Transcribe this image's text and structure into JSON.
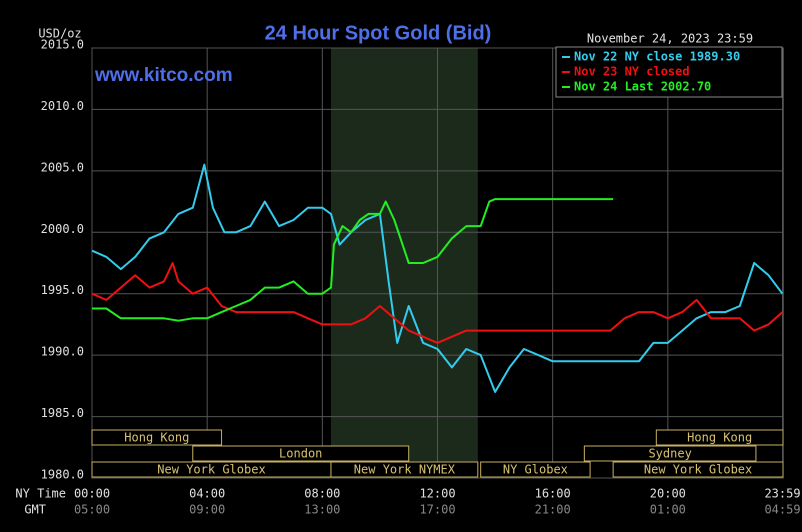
{
  "chart_data": {
    "type": "line",
    "title": "24 Hour Spot Gold (Bid)",
    "date_label": "November 24, 2023 23:59",
    "watermark": "www.kitco.com",
    "y_unit": "USD/oz",
    "x_row_label": "NY Time",
    "x_row2_label": "GMT",
    "xlim": [
      0,
      24
    ],
    "ylim": [
      1980,
      2015
    ],
    "yticks": [
      {
        "value": 1980,
        "label": "1980.0"
      },
      {
        "value": 1985,
        "label": "1985.0"
      },
      {
        "value": 1990,
        "label": "1990.0"
      },
      {
        "value": 1995,
        "label": "1995.0"
      },
      {
        "value": 2000,
        "label": "2000.0"
      },
      {
        "value": 2005,
        "label": "2005.0"
      },
      {
        "value": 2010,
        "label": "2010.0"
      },
      {
        "value": 2015,
        "label": "2015.0"
      }
    ],
    "xticks": [
      {
        "value": 0,
        "label": "00:00",
        "gmt": "05:00"
      },
      {
        "value": 4,
        "label": "04:00",
        "gmt": "09:00"
      },
      {
        "value": 8,
        "label": "08:00",
        "gmt": "13:00"
      },
      {
        "value": 12,
        "label": "12:00",
        "gmt": "17:00"
      },
      {
        "value": 16,
        "label": "16:00",
        "gmt": "21:00"
      },
      {
        "value": 20,
        "label": "20:00",
        "gmt": "01:00"
      },
      {
        "value": 23.983,
        "label": "23:59",
        "gmt": "04:59"
      }
    ],
    "grid": true,
    "sessions": [
      {
        "label": "Hong Kong",
        "start": 0,
        "end": 4.5
      },
      {
        "label": "Hong Kong",
        "start": 19.6,
        "end": 24
      },
      {
        "label": "London",
        "start": 3.5,
        "end": 11
      },
      {
        "label": "Sydney",
        "start": 17.1,
        "end": 23.06
      },
      {
        "label": "New York Globex",
        "start": 0,
        "end": 8.3
      },
      {
        "label": "New York NYMEX",
        "start": 8.3,
        "end": 13.4
      },
      {
        "label": "NY Globex",
        "start": 13.5,
        "end": 17.3
      },
      {
        "label": "New York Globex",
        "start": 18.1,
        "end": 24
      }
    ],
    "series": [
      {
        "name": "Nov 22 NY close 1989.30",
        "color": "#33ccee",
        "x": [
          0,
          0.5,
          1,
          1.5,
          2,
          2.5,
          3,
          3.5,
          3.9,
          4.2,
          4.6,
          5,
          5.5,
          6,
          6.5,
          7,
          7.5,
          8,
          8.3,
          8.6,
          9,
          9.5,
          10,
          10.3,
          10.6,
          11,
          11.5,
          12,
          12.5,
          13,
          13.5,
          14,
          14.5,
          15,
          15.5,
          16,
          17,
          18,
          19,
          19.5,
          20,
          20.5,
          21,
          21.5,
          22,
          22.5,
          23,
          23.5,
          23.98
        ],
        "values": [
          1998.5,
          1998,
          1997,
          1998,
          1999.5,
          2000,
          2001.5,
          2002,
          2005.5,
          2002,
          2000,
          2000,
          2000.5,
          2002.5,
          2000.5,
          2001,
          2002,
          2002,
          2001.5,
          1999,
          2000,
          2001,
          2001.5,
          1996,
          1991,
          1994,
          1991,
          1990.5,
          1989,
          1990.5,
          1990,
          1987,
          1989,
          1990.5,
          1990,
          1989.5,
          1989.5,
          1989.5,
          1989.5,
          1991,
          1991,
          1992,
          1993,
          1993.5,
          1993.5,
          1994,
          1997.5,
          1996.5,
          1995
        ]
      },
      {
        "name": "Nov 23 NY closed",
        "color": "#ee1111",
        "x": [
          0,
          0.5,
          1,
          1.5,
          2,
          2.5,
          2.8,
          3,
          3.5,
          4,
          4.5,
          5,
          5.5,
          6,
          6.5,
          7,
          7.5,
          8,
          8.5,
          9,
          9.5,
          10,
          10.5,
          11,
          11.5,
          12,
          12.5,
          13,
          13.5,
          14,
          15,
          16,
          17,
          18,
          18.5,
          19,
          19.5,
          20,
          20.5,
          21,
          21.5,
          22,
          22.5,
          23,
          23.5,
          23.98
        ],
        "values": [
          1995,
          1994.5,
          1995.5,
          1996.5,
          1995.5,
          1996,
          1997.5,
          1996,
          1995,
          1995.5,
          1994,
          1993.5,
          1993.5,
          1993.5,
          1993.5,
          1993.5,
          1993,
          1992.5,
          1992.5,
          1992.5,
          1993,
          1994,
          1993,
          1992,
          1991.5,
          1991,
          1991.5,
          1992,
          1992,
          1992,
          1992,
          1992,
          1992,
          1992,
          1993,
          1993.5,
          1993.5,
          1993,
          1993.5,
          1994.5,
          1993,
          1993,
          1993,
          1992,
          1992.5,
          1993.5
        ]
      },
      {
        "name": "Nov 24 Last 2002.70",
        "color": "#22ee22",
        "x": [
          0,
          0.5,
          1,
          1.5,
          2,
          2.5,
          3,
          3.5,
          4,
          4.5,
          5,
          5.5,
          6,
          6.5,
          7,
          7.5,
          8,
          8.3,
          8.4,
          8.7,
          9,
          9.3,
          9.6,
          10,
          10.2,
          10.5,
          11,
          11.5,
          12,
          12.5,
          13,
          13.5,
          13.8,
          14,
          18.1
        ],
        "values": [
          1993.8,
          1993.8,
          1993,
          1993,
          1993,
          1993,
          1992.8,
          1993,
          1993,
          1993.5,
          1994,
          1994.5,
          1995.5,
          1995.5,
          1996,
          1995,
          1995,
          1995.5,
          1999,
          2000.5,
          2000,
          2001,
          2001.5,
          2001.5,
          2002.5,
          2001,
          1997.5,
          1997.5,
          1998,
          1999.5,
          2000.5,
          2000.5,
          2002.5,
          2002.7,
          2002.7
        ]
      }
    ]
  }
}
